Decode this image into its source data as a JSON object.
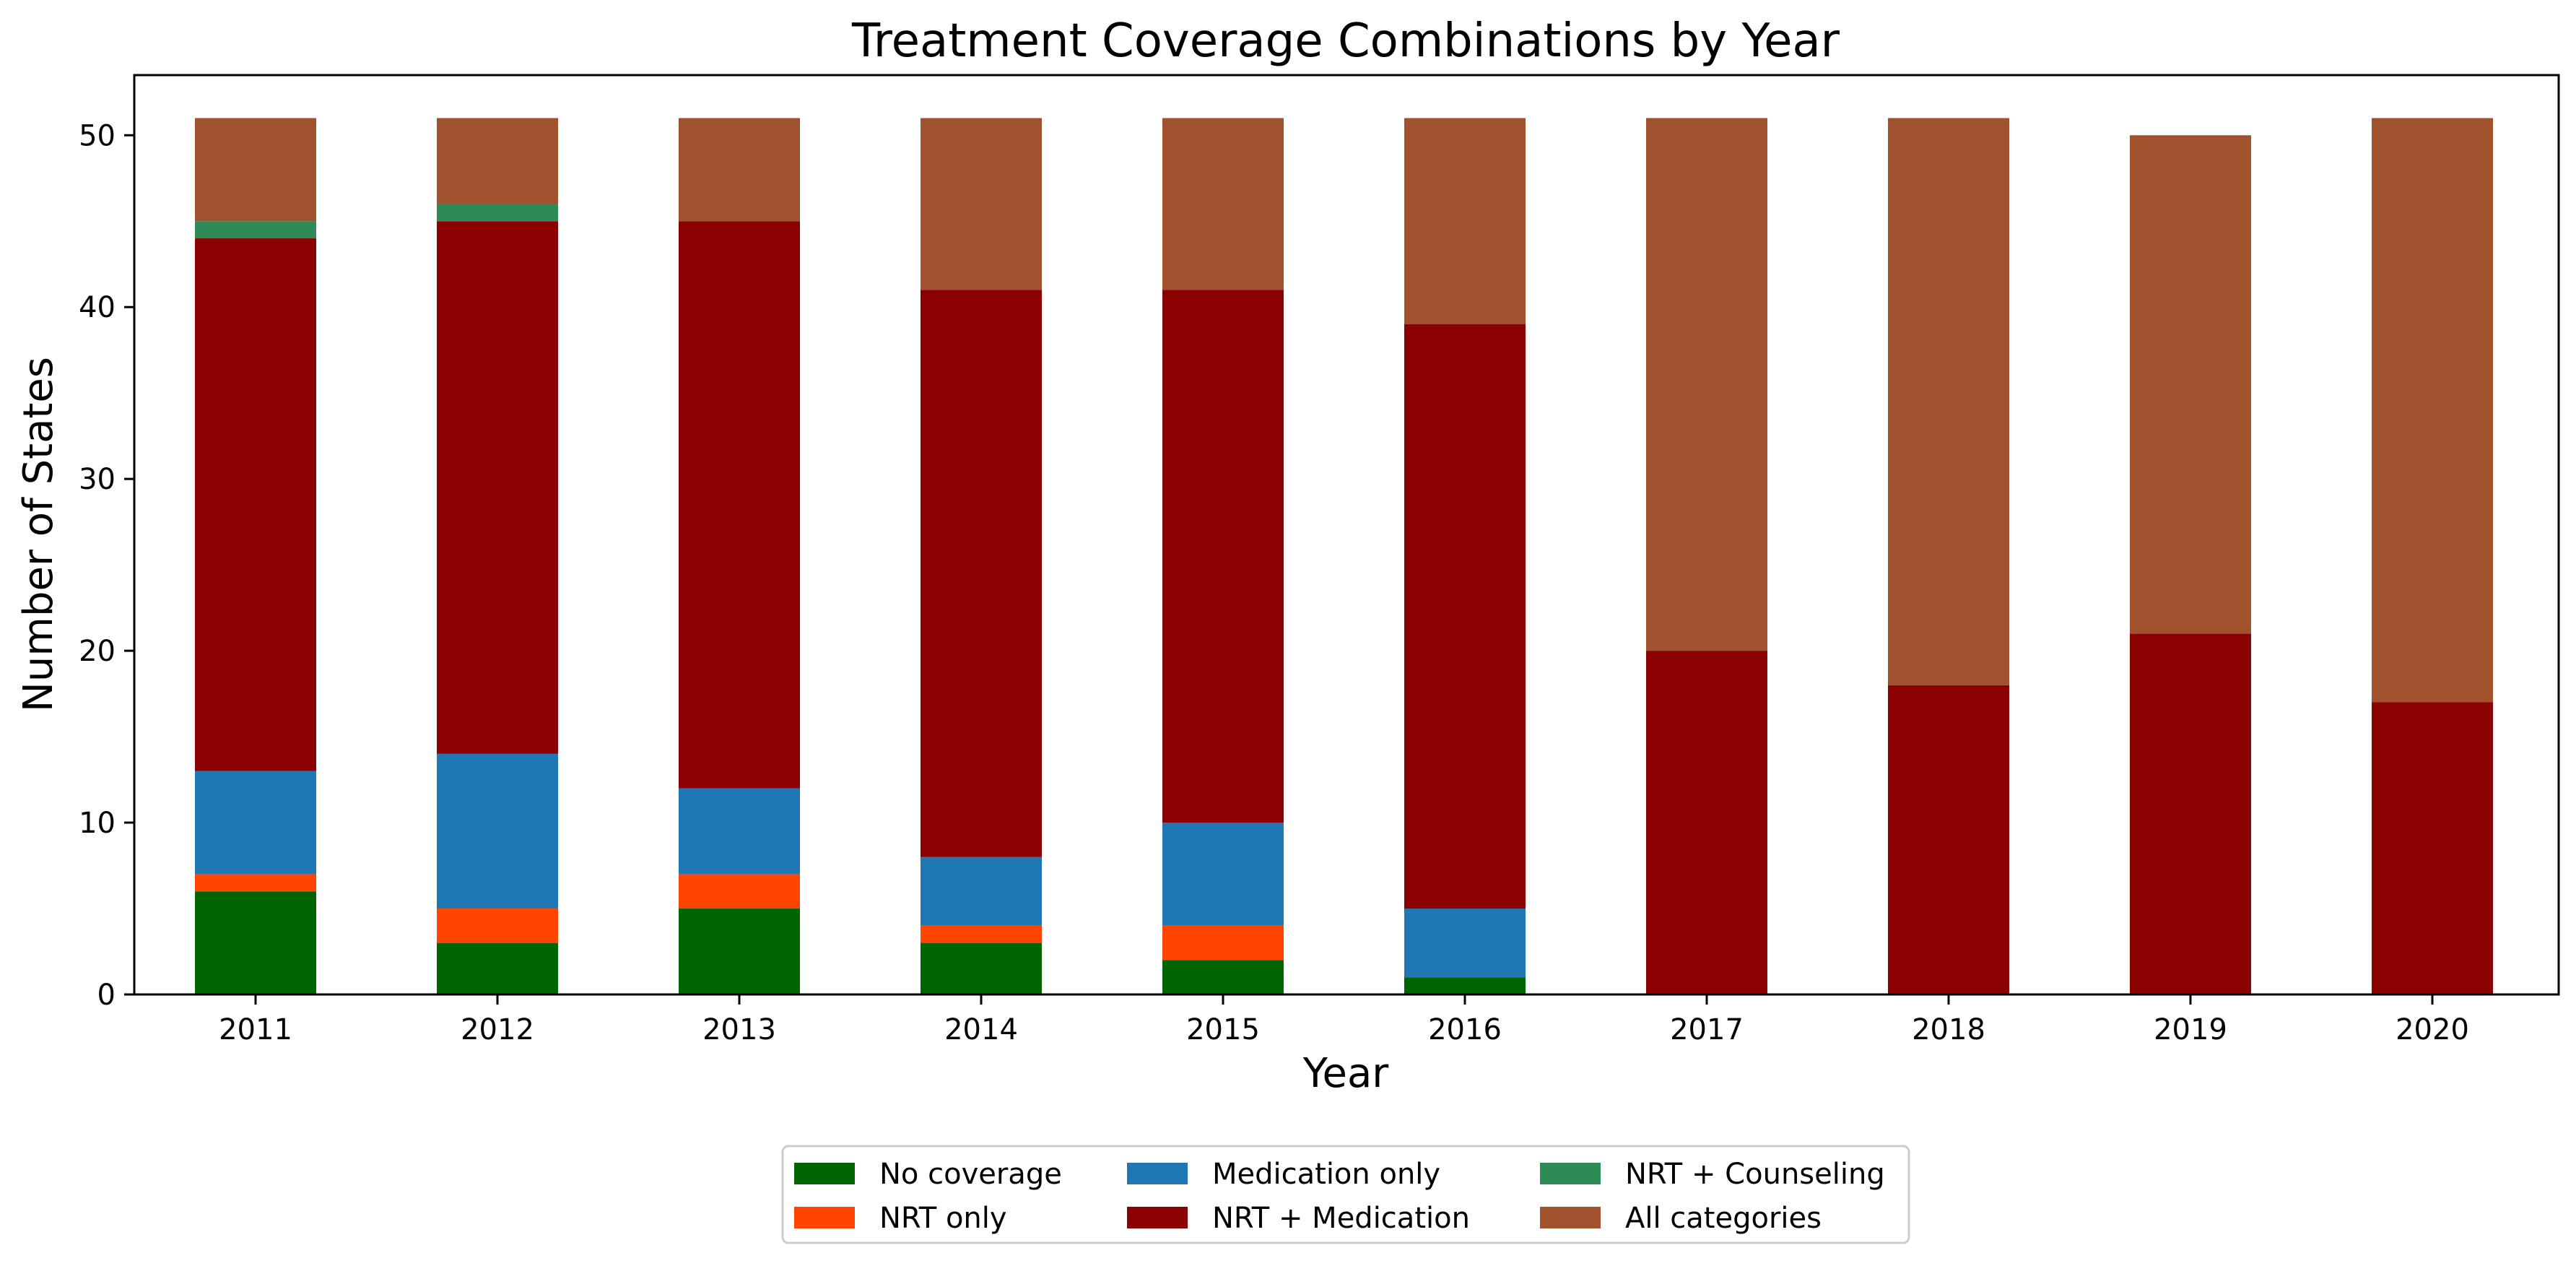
{
  "chart_data": {
    "type": "bar",
    "stacked": true,
    "title": "Treatment Coverage Combinations by Year",
    "xlabel": "Year",
    "ylabel": "Number of States",
    "ylim": [
      0,
      53.5
    ],
    "yticks": [
      0,
      10,
      20,
      30,
      40,
      50
    ],
    "grid": false,
    "legend_position": "bottom-center",
    "legend_columns": 3,
    "categories": [
      "2011",
      "2012",
      "2013",
      "2014",
      "2015",
      "2016",
      "2017",
      "2018",
      "2019",
      "2020"
    ],
    "series": [
      {
        "name": "No coverage",
        "color": "#006400",
        "values": [
          6,
          3,
          5,
          3,
          2,
          1,
          0,
          0,
          0,
          0
        ]
      },
      {
        "name": "NRT only",
        "color": "#ff4500",
        "values": [
          1,
          2,
          2,
          1,
          2,
          0,
          0,
          0,
          0,
          0
        ]
      },
      {
        "name": "Medication only",
        "color": "#1f77b4",
        "values": [
          6,
          9,
          5,
          4,
          6,
          4,
          0,
          0,
          0,
          0
        ]
      },
      {
        "name": "NRT + Medication",
        "color": "#8b0000",
        "values": [
          31,
          31,
          33,
          33,
          31,
          34,
          20,
          18,
          21,
          17
        ]
      },
      {
        "name": "NRT + Counseling",
        "color": "#2e8b57",
        "values": [
          1,
          1,
          0,
          0,
          0,
          0,
          0,
          0,
          0,
          0
        ]
      },
      {
        "name": "All categories",
        "color": "#a0522d",
        "values": [
          6,
          5,
          6,
          10,
          10,
          12,
          31,
          33,
          29,
          34
        ]
      }
    ]
  }
}
